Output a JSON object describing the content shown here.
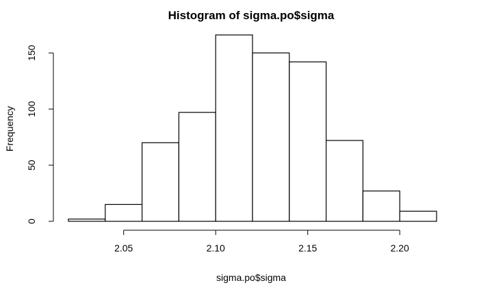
{
  "chart_data": {
    "type": "bar",
    "title": "Histogram of sigma.po$sigma",
    "xlabel": "sigma.po$sigma",
    "ylabel": "Frequency",
    "bins": [
      {
        "from": 2.02,
        "to": 2.04,
        "count": 2
      },
      {
        "from": 2.04,
        "to": 2.06,
        "count": 15
      },
      {
        "from": 2.06,
        "to": 2.08,
        "count": 70
      },
      {
        "from": 2.08,
        "to": 2.1,
        "count": 97
      },
      {
        "from": 2.1,
        "to": 2.12,
        "count": 166
      },
      {
        "from": 2.12,
        "to": 2.14,
        "count": 150
      },
      {
        "from": 2.14,
        "to": 2.16,
        "count": 142
      },
      {
        "from": 2.16,
        "to": 2.18,
        "count": 72
      },
      {
        "from": 2.18,
        "to": 2.2,
        "count": 27
      },
      {
        "from": 2.2,
        "to": 2.22,
        "count": 9
      }
    ],
    "xlim": [
      2.02,
      2.22
    ],
    "ylim": [
      0,
      166
    ],
    "xticks": [
      2.05,
      2.1,
      2.15,
      2.2
    ],
    "xtick_labels": [
      "2.05",
      "2.10",
      "2.15",
      "2.20"
    ],
    "yticks": [
      0,
      50,
      100,
      150
    ],
    "ytick_labels": [
      "0",
      "50",
      "100",
      "150"
    ],
    "grid": false,
    "colors": {
      "fill": "#ffffff",
      "stroke": "#000000"
    }
  }
}
